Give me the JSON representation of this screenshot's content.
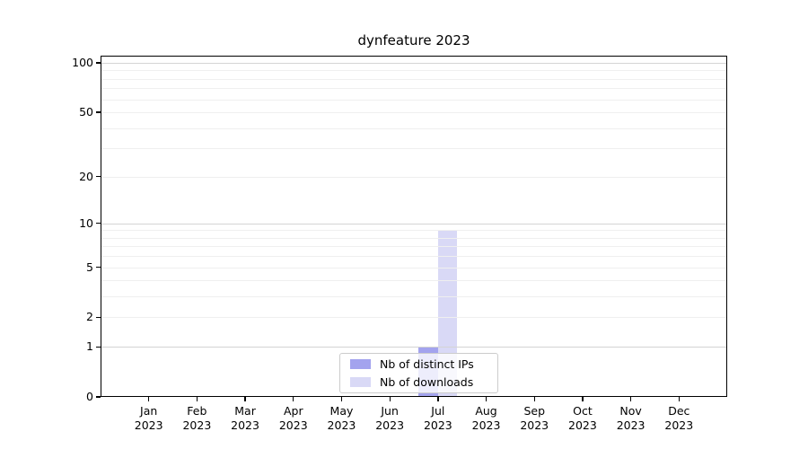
{
  "chart_data": {
    "type": "bar",
    "title": "dynfeature 2023",
    "months": [
      "Jan",
      "Feb",
      "Mar",
      "Apr",
      "May",
      "Jun",
      "Jul",
      "Aug",
      "Sep",
      "Oct",
      "Nov",
      "Dec"
    ],
    "year": "2023",
    "series": [
      {
        "name": "Nb of distinct IPs",
        "color": "#a3a3ee",
        "values": [
          0,
          0,
          0,
          0,
          0,
          0,
          1,
          0,
          0,
          0,
          0,
          0
        ]
      },
      {
        "name": "Nb of downloads",
        "color": "#d9d9f6",
        "values": [
          0,
          0,
          0,
          0,
          0,
          0,
          9,
          0,
          0,
          0,
          0,
          0
        ]
      }
    ],
    "y_scale": "log1p",
    "ylim": [
      0,
      110
    ],
    "y_ticks": [
      100,
      50,
      20,
      10,
      5,
      2,
      1,
      0
    ],
    "y_major_gridlines": [
      1,
      10,
      100
    ],
    "y_minor_gridlines": [
      2,
      3,
      4,
      5,
      6,
      7,
      8,
      9,
      20,
      30,
      40,
      50,
      60,
      70,
      80,
      90
    ],
    "grid": true,
    "legend_position": "lower center",
    "colors": {
      "grid_minor": "#efefef",
      "grid_major": "#d4d4d4",
      "spine": "#000000",
      "background": "#ffffff"
    }
  }
}
